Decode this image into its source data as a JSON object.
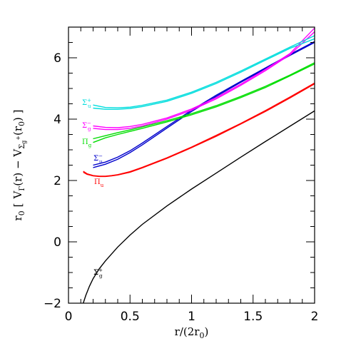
{
  "chart_data": {
    "type": "line",
    "xlabel": "r/(2r",
    "xlabel_sub": "0",
    "xlabel_end": ")",
    "ylabel_parts": {
      "lhs": "r",
      "lhs_sub": "0",
      "open": "[",
      "v1": "V",
      "v1_sub": "Γ",
      "mid": "(r) − V",
      "v2_sub": "Σ",
      "v2_subsub": "g",
      "v2_sup": "+",
      "arg": "(r",
      "arg_sub": "0",
      "close": ")  ]"
    },
    "xlim": [
      0,
      2
    ],
    "ylim": [
      -2,
      7
    ],
    "x_ticks": [
      0,
      0.5,
      1,
      1.5,
      2
    ],
    "x_tick_labels": [
      "0",
      "0.5",
      "1",
      "1.5",
      "2"
    ],
    "y_ticks": [
      -2,
      0,
      2,
      4,
      6
    ],
    "y_tick_labels": [
      "−2",
      "0",
      "2",
      "4",
      "6"
    ],
    "grid": false,
    "series": [
      {
        "color": "#000000",
        "label": {
          "main": "Σ",
          "sup": "+",
          "sub": "g"
        },
        "x": [
          0.12,
          0.14,
          0.17,
          0.2,
          0.25,
          0.3,
          0.4,
          0.5,
          0.6,
          0.8,
          1.0,
          1.2,
          1.4,
          1.6,
          1.8,
          2.0
        ],
        "y": [
          -2.0,
          -1.75,
          -1.45,
          -1.2,
          -0.88,
          -0.62,
          -0.17,
          0.22,
          0.57,
          1.17,
          1.72,
          2.24,
          2.76,
          3.27,
          3.77,
          4.27
        ]
      },
      {
        "color": "#ff0000",
        "label": {
          "main": "Π",
          "sup": "",
          "sub": "u"
        },
        "x": [
          0.12,
          0.15,
          0.2,
          0.25,
          0.3,
          0.35,
          0.4,
          0.5,
          0.6,
          0.8,
          1.0,
          1.2,
          1.4,
          1.6,
          1.8,
          2.0
        ],
        "y": [
          2.3,
          2.22,
          2.16,
          2.14,
          2.14,
          2.16,
          2.19,
          2.29,
          2.43,
          2.74,
          3.09,
          3.47,
          3.86,
          4.28,
          4.72,
          5.18
        ]
      },
      {
        "color": "#ff0000",
        "x": [
          0.12,
          0.15,
          0.2,
          0.25,
          0.3,
          0.35,
          0.4,
          0.5,
          0.6,
          0.8,
          1.0,
          1.2,
          1.4,
          1.6,
          1.8,
          2.0
        ],
        "y": [
          2.27,
          2.2,
          2.15,
          2.13,
          2.13,
          2.15,
          2.18,
          2.27,
          2.41,
          2.72,
          3.07,
          3.44,
          3.84,
          4.25,
          4.69,
          5.15
        ]
      },
      {
        "color": "#0000cc",
        "label": {
          "main": "Σ",
          "sup": "−",
          "sub": "u"
        },
        "x": [
          0.2,
          0.3,
          0.4,
          0.5,
          0.6,
          0.8,
          1.0,
          1.2,
          1.4,
          1.6,
          1.8,
          2.0
        ],
        "y": [
          2.5,
          2.6,
          2.76,
          2.97,
          3.22,
          3.76,
          4.29,
          4.78,
          5.23,
          5.67,
          6.11,
          6.53
        ]
      },
      {
        "color": "#0000cc",
        "x": [
          0.2,
          0.3,
          0.4,
          0.5,
          0.6,
          0.8,
          1.0,
          1.2,
          1.4,
          1.6,
          1.8,
          2.0
        ],
        "y": [
          2.42,
          2.53,
          2.69,
          2.91,
          3.16,
          3.71,
          4.25,
          4.74,
          5.2,
          5.64,
          6.08,
          6.5
        ]
      },
      {
        "color": "#00dd00",
        "label": {
          "main": "Π",
          "sup": "",
          "sub": "g"
        },
        "x": [
          0.2,
          0.3,
          0.4,
          0.5,
          0.6,
          0.8,
          1.0,
          1.2,
          1.4,
          1.6,
          1.8,
          2.0
        ],
        "y": [
          3.36,
          3.46,
          3.56,
          3.65,
          3.75,
          3.95,
          4.18,
          4.44,
          4.74,
          5.07,
          5.44,
          5.84
        ]
      },
      {
        "color": "#00dd00",
        "x": [
          0.2,
          0.3,
          0.4,
          0.5,
          0.6,
          0.8,
          1.0,
          1.2,
          1.4,
          1.6,
          1.8,
          2.0
        ],
        "y": [
          3.24,
          3.39,
          3.5,
          3.6,
          3.7,
          3.91,
          4.14,
          4.4,
          4.7,
          5.03,
          5.41,
          5.8
        ]
      },
      {
        "color": "#ff00ff",
        "label": {
          "main": "Σ",
          "sup": "−",
          "sub": "g"
        },
        "x": [
          0.2,
          0.3,
          0.4,
          0.5,
          0.6,
          0.8,
          1.0,
          1.2,
          1.4,
          1.6,
          1.8,
          2.0
        ],
        "y": [
          3.78,
          3.73,
          3.72,
          3.76,
          3.83,
          4.04,
          4.33,
          4.7,
          5.14,
          5.62,
          6.14,
          6.97
        ]
      },
      {
        "color": "#ff00ff",
        "x": [
          0.2,
          0.3,
          0.4,
          0.5,
          0.6,
          0.8,
          1.0,
          1.2,
          1.4,
          1.6,
          1.8,
          2.0
        ],
        "y": [
          3.7,
          3.66,
          3.66,
          3.7,
          3.78,
          4.0,
          4.29,
          4.66,
          5.1,
          5.58,
          6.1,
          6.85
        ]
      },
      {
        "color": "#00dddd",
        "label": {
          "main": "Σ",
          "sup": "+",
          "sub": "u"
        },
        "x": [
          0.2,
          0.3,
          0.4,
          0.5,
          0.6,
          0.8,
          1.0,
          1.2,
          1.4,
          1.6,
          1.8,
          2.0
        ],
        "y": [
          4.46,
          4.38,
          4.37,
          4.39,
          4.45,
          4.62,
          4.88,
          5.2,
          5.57,
          5.96,
          6.35,
          6.72
        ]
      },
      {
        "color": "#00dddd",
        "x": [
          0.2,
          0.3,
          0.4,
          0.5,
          0.6,
          0.8,
          1.0,
          1.2,
          1.4,
          1.6,
          1.8,
          2.0
        ],
        "y": [
          4.36,
          4.32,
          4.32,
          4.35,
          4.41,
          4.58,
          4.84,
          5.16,
          5.53,
          5.92,
          6.31,
          6.62
        ]
      }
    ]
  }
}
